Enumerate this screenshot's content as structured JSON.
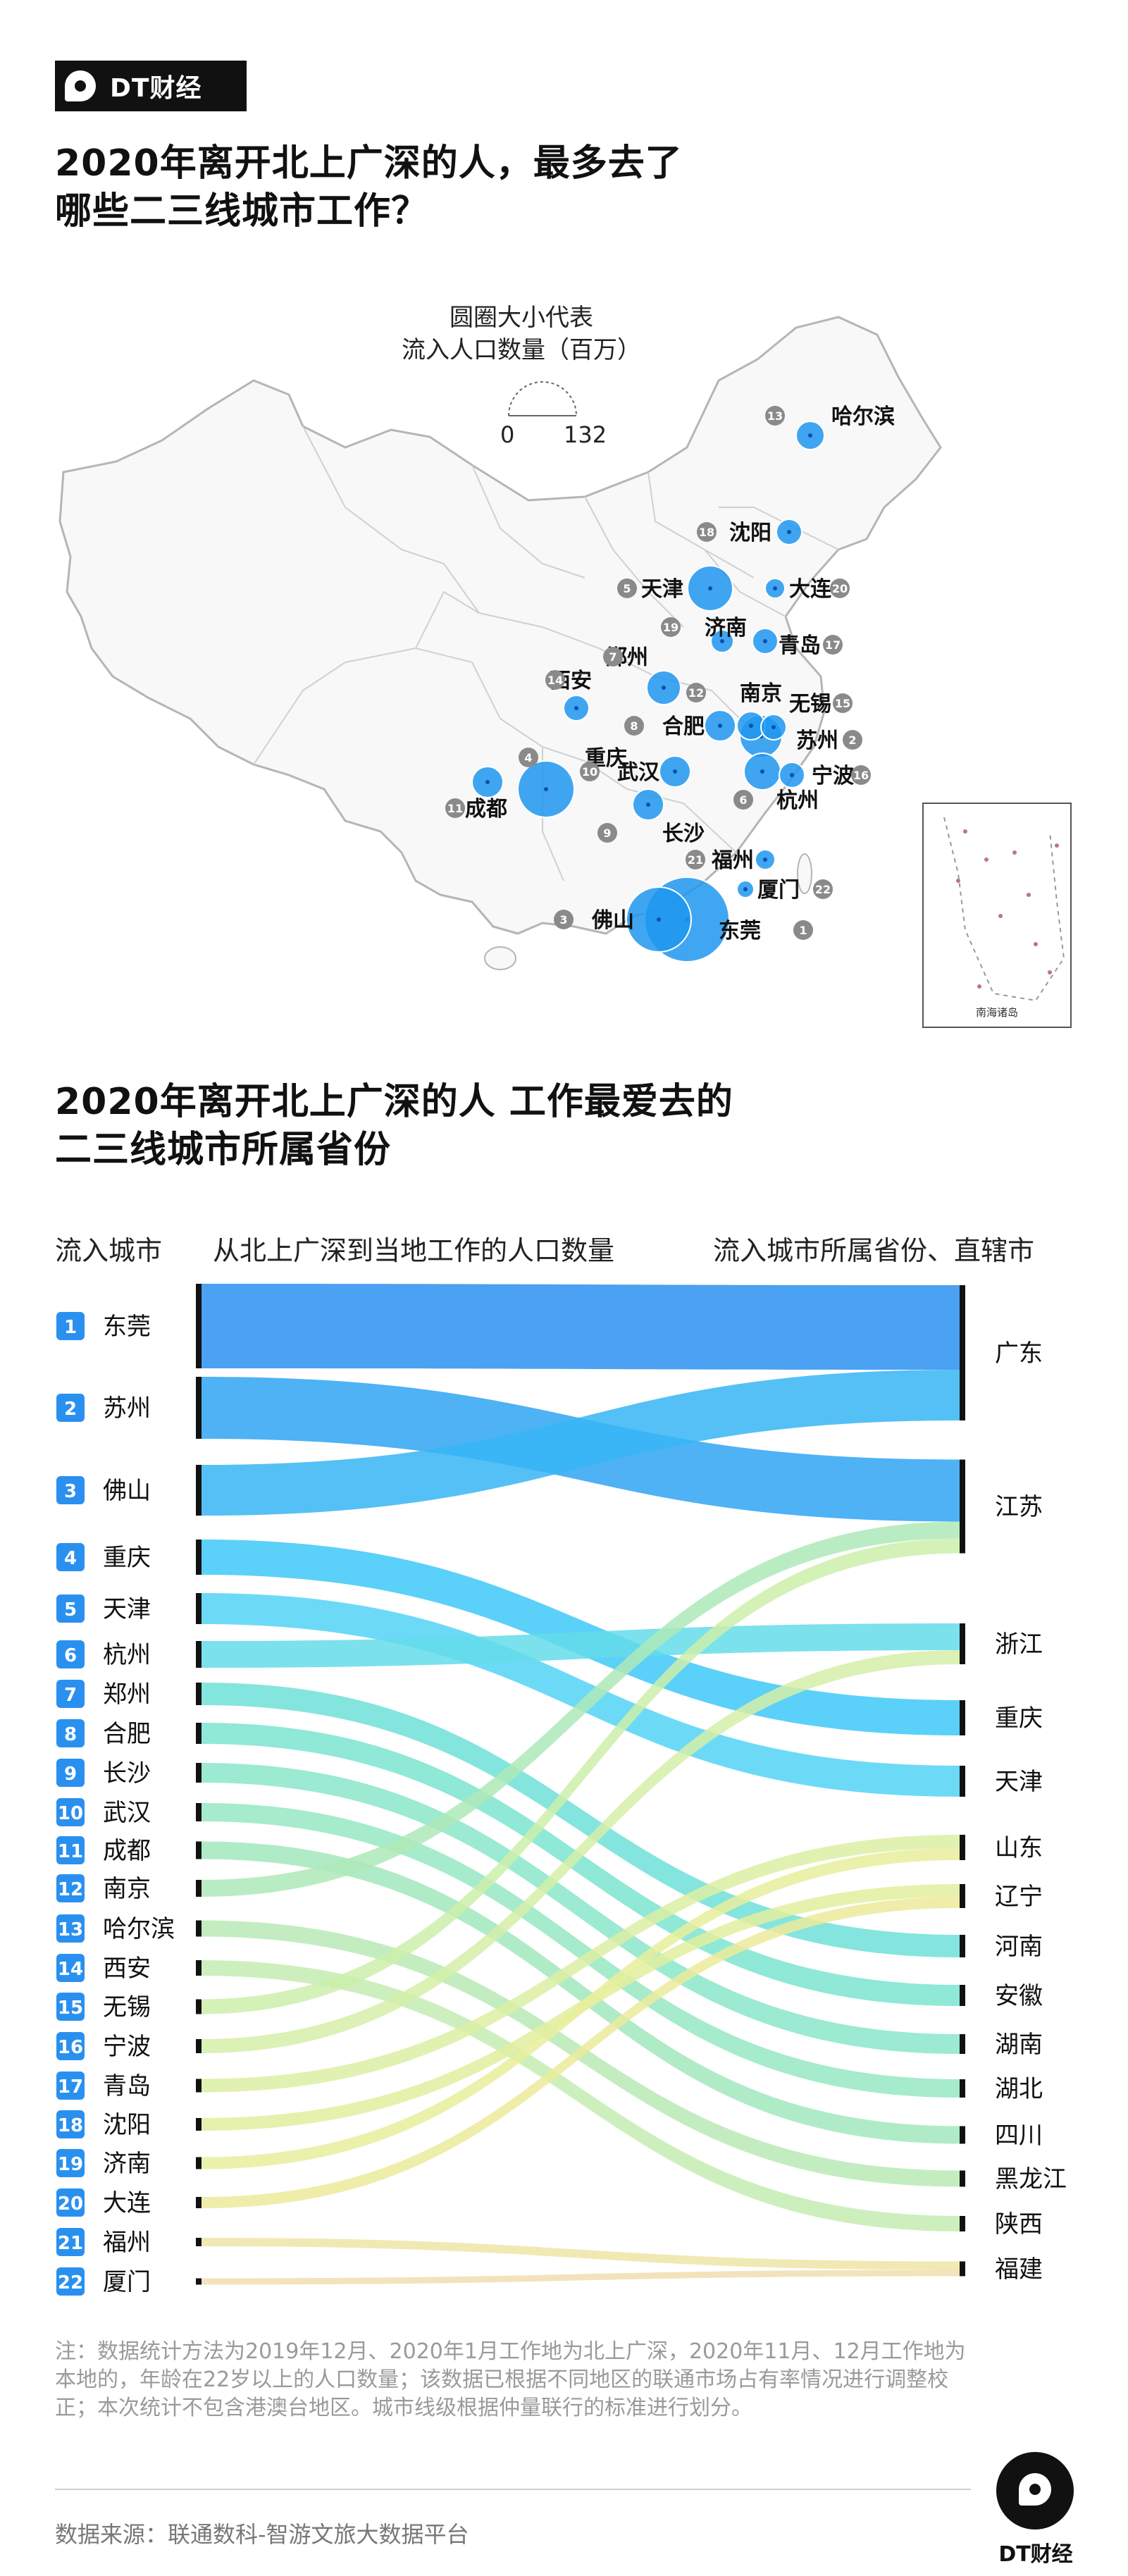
{
  "brand": {
    "name": "DT财经"
  },
  "map": {
    "title": "2020年离开北上广深的人，最多去了\n哪些二三线城市工作？",
    "legend_title": "圆圈大小代表\n流入人口数量（百万）",
    "legend_min": "0",
    "legend_max": "132",
    "inset_label": "南海诸岛",
    "cities": [
      {
        "rank": 1,
        "name": "东莞"
      },
      {
        "rank": 2,
        "name": "苏州"
      },
      {
        "rank": 3,
        "name": "佛山"
      },
      {
        "rank": 4,
        "name": "重庆"
      },
      {
        "rank": 5,
        "name": "天津"
      },
      {
        "rank": 6,
        "name": "杭州"
      },
      {
        "rank": 7,
        "name": "郑州"
      },
      {
        "rank": 8,
        "name": "合肥"
      },
      {
        "rank": 9,
        "name": "长沙"
      },
      {
        "rank": 10,
        "name": "武汉"
      },
      {
        "rank": 11,
        "name": "成都"
      },
      {
        "rank": 12,
        "name": "南京"
      },
      {
        "rank": 13,
        "name": "哈尔滨"
      },
      {
        "rank": 14,
        "name": "西安"
      },
      {
        "rank": 15,
        "name": "无锡"
      },
      {
        "rank": 16,
        "name": "宁波"
      },
      {
        "rank": 17,
        "name": "青岛"
      },
      {
        "rank": 18,
        "name": "沈阳"
      },
      {
        "rank": 19,
        "name": "济南"
      },
      {
        "rank": 20,
        "name": "大连"
      },
      {
        "rank": 21,
        "name": "福州"
      },
      {
        "rank": 22,
        "name": "厦门"
      }
    ],
    "colors": {
      "bubble": "#1e96f0",
      "core": "#0a4fb5",
      "badge": "#8a8a8a"
    }
  },
  "chart_data": {
    "type": "sankey",
    "title": "2020年离开北上广深的人 工作最爱去的\n二三线城市所属省份",
    "col_left": "流入城市",
    "col_mid": "从北上广深到当地工作的人口数量",
    "col_right": "流入城市所属省份、直辖市",
    "sources": [
      {
        "rank": 1,
        "name": "东莞",
        "value": 120,
        "target": "广东"
      },
      {
        "rank": 2,
        "name": "苏州",
        "value": 88,
        "target": "江苏"
      },
      {
        "rank": 3,
        "name": "佛山",
        "value": 72,
        "target": "广东"
      },
      {
        "rank": 4,
        "name": "重庆",
        "value": 50,
        "target": "重庆"
      },
      {
        "rank": 5,
        "name": "天津",
        "value": 44,
        "target": "天津"
      },
      {
        "rank": 6,
        "name": "杭州",
        "value": 38,
        "target": "浙江"
      },
      {
        "rank": 7,
        "name": "郑州",
        "value": 32,
        "target": "河南"
      },
      {
        "rank": 8,
        "name": "合肥",
        "value": 30,
        "target": "安徽"
      },
      {
        "rank": 9,
        "name": "长沙",
        "value": 28,
        "target": "湖南"
      },
      {
        "rank": 10,
        "name": "武汉",
        "value": 26,
        "target": "湖北"
      },
      {
        "rank": 11,
        "name": "成都",
        "value": 25,
        "target": "四川"
      },
      {
        "rank": 12,
        "name": "南京",
        "value": 24,
        "target": "江苏"
      },
      {
        "rank": 13,
        "name": "哈尔滨",
        "value": 23,
        "target": "黑龙江"
      },
      {
        "rank": 14,
        "name": "西安",
        "value": 22,
        "target": "陕西"
      },
      {
        "rank": 15,
        "name": "无锡",
        "value": 21,
        "target": "江苏"
      },
      {
        "rank": 16,
        "name": "宁波",
        "value": 20,
        "target": "浙江"
      },
      {
        "rank": 17,
        "name": "青岛",
        "value": 19,
        "target": "山东"
      },
      {
        "rank": 18,
        "name": "沈阳",
        "value": 18,
        "target": "辽宁"
      },
      {
        "rank": 19,
        "name": "济南",
        "value": 17,
        "target": "山东"
      },
      {
        "rank": 20,
        "name": "大连",
        "value": 16,
        "target": "辽宁"
      },
      {
        "rank": 21,
        "name": "福州",
        "value": 12,
        "target": "福建"
      },
      {
        "rank": 22,
        "name": "厦门",
        "value": 9,
        "target": "福建"
      }
    ],
    "targets": [
      "广东",
      "江苏",
      "浙江",
      "重庆",
      "天津",
      "山东",
      "辽宁",
      "河南",
      "安徽",
      "湖南",
      "湖北",
      "四川",
      "黑龙江",
      "陕西",
      "福建"
    ],
    "colors": [
      "#2b90f0",
      "#2fa5f3",
      "#37b5f5",
      "#3ec8f8",
      "#52d3f6",
      "#64dce9",
      "#6fe0d8",
      "#7de4d0",
      "#8ae6c9",
      "#96e7c2",
      "#a2e8bd",
      "#aee9b9",
      "#b9eab5",
      "#c4ecb1",
      "#cdeeac",
      "#d5efa8",
      "#dcefa3",
      "#e2ef9f",
      "#e7ee9c",
      "#ebeb9b",
      "#efe5a7",
      "#f1deb0"
    ],
    "badge_color": "#2a90f0"
  },
  "note": "注：数据统计方法为2019年12月、2020年1月工作地为北上广深，2020年11月、12月工作地为本地的，年龄在22岁以上的人口数量；该数据已根据不同地区的联通市场占有率情况进行调整校正；本次统计不包含港澳台地区。城市线级根据仲量联行的标准进行划分。",
  "source": "数据来源：联通数科-智游文旅大数据平台"
}
